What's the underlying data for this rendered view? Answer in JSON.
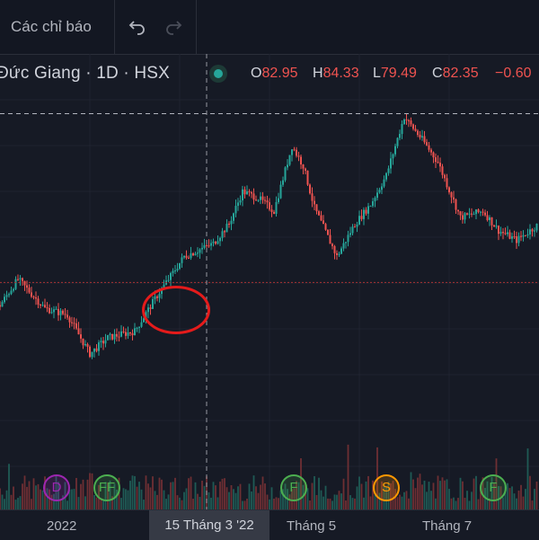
{
  "toolbar": {
    "indicators_label": "Các chỉ báo",
    "undo_icon": "undo-arrow-icon",
    "redo_icon": "redo-arrow-icon"
  },
  "legend": {
    "symbol_title": "Đức Giang · 1D · HSX",
    "status_color": "#26a69a",
    "o_label": "O",
    "o_value": "82.95",
    "h_label": "H",
    "h_value": "84.33",
    "l_label": "L",
    "l_value": "79.49",
    "c_label": "C",
    "c_value": "82.35",
    "change": "−0.60"
  },
  "colors": {
    "up": "#26a69a",
    "down": "#ef5350",
    "annotation": "#e51b1b",
    "background": "#161a25"
  },
  "time_axis": {
    "ticks": [
      "2022",
      "Tháng 5",
      "Tháng 7"
    ],
    "crosshair_label": "15 Tháng 3 '22"
  },
  "events": [
    {
      "label": "D",
      "color": "#9c27b0"
    },
    {
      "label": "FF",
      "color": "#4caf50"
    },
    {
      "label": "F",
      "color": "#4caf50"
    },
    {
      "label": "S",
      "color": "#ff9800"
    },
    {
      "label": "F",
      "color": "#4caf50"
    }
  ],
  "chart_data": {
    "type": "candlestick",
    "timeframe": "1D",
    "last_ohlc": {
      "open": 82.95,
      "high": 84.33,
      "low": 79.49,
      "close": 82.35,
      "change": -0.6
    },
    "price_anchors": [
      {
        "t": 0,
        "p": 55
      },
      {
        "t": 8,
        "p": 63
      },
      {
        "t": 20,
        "p": 54
      },
      {
        "t": 30,
        "p": 52
      },
      {
        "t": 40,
        "p": 40
      },
      {
        "t": 48,
        "p": 45
      },
      {
        "t": 60,
        "p": 47
      },
      {
        "t": 70,
        "p": 58
      },
      {
        "t": 82,
        "p": 70
      },
      {
        "t": 95,
        "p": 74
      },
      {
        "t": 102,
        "p": 80
      },
      {
        "t": 108,
        "p": 90
      },
      {
        "t": 115,
        "p": 88
      },
      {
        "t": 122,
        "p": 84
      },
      {
        "t": 130,
        "p": 104
      },
      {
        "t": 135,
        "p": 98
      },
      {
        "t": 140,
        "p": 85
      },
      {
        "t": 150,
        "p": 70
      },
      {
        "t": 158,
        "p": 80
      },
      {
        "t": 165,
        "p": 86
      },
      {
        "t": 172,
        "p": 95
      },
      {
        "t": 180,
        "p": 113
      },
      {
        "t": 188,
        "p": 106
      },
      {
        "t": 195,
        "p": 99
      },
      {
        "t": 205,
        "p": 82
      },
      {
        "t": 215,
        "p": 84
      },
      {
        "t": 222,
        "p": 78
      },
      {
        "t": 230,
        "p": 75
      },
      {
        "t": 240,
        "p": 80
      }
    ],
    "horizontal_levels": [
      {
        "name": "high",
        "value": 114
      },
      {
        "name": "support",
        "value": 62
      }
    ],
    "crosshair_t": 92,
    "volume_relative": true
  }
}
